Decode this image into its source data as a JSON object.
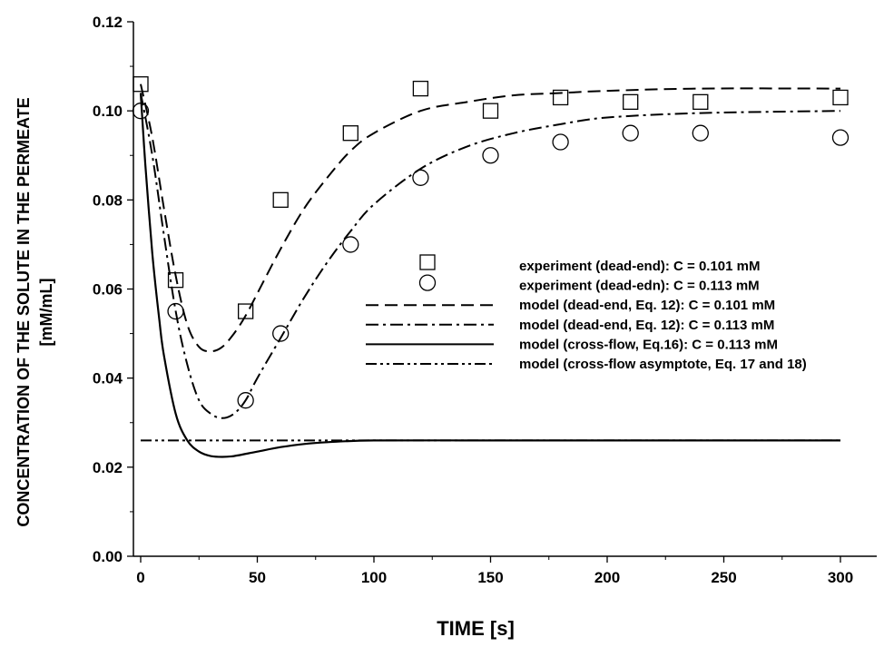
{
  "chart_data": {
    "type": "scatter",
    "xlabel": "TIME [s]",
    "ylabel_line1": "CONCENTRATION OF THE SOLUTE IN THE PERMEATE",
    "ylabel_line2": "[mM/mL]",
    "xlim": [
      0,
      320
    ],
    "ylim": [
      0,
      0.12
    ],
    "xticks": [
      0,
      50,
      100,
      150,
      200,
      250,
      300
    ],
    "yticks": [
      0.0,
      0.02,
      0.04,
      0.06,
      0.08,
      0.1,
      0.12
    ],
    "xtick_labels": [
      "0",
      "50",
      "100",
      "150",
      "200",
      "250",
      "300"
    ],
    "ytick_labels": [
      "0.00",
      "0.02",
      "0.04",
      "0.06",
      "0.08",
      "0.10",
      "0.12"
    ],
    "grid": false,
    "legend_position": "center-right",
    "series": [
      {
        "name": "experiment (dead-end): C = 0.101 mM",
        "kind": "markers",
        "marker": "square",
        "x": [
          0,
          15,
          45,
          60,
          90,
          120,
          150,
          180,
          210,
          240,
          300
        ],
        "y": [
          0.106,
          0.062,
          0.055,
          0.08,
          0.095,
          0.105,
          0.1,
          0.103,
          0.102,
          0.102,
          0.103
        ]
      },
      {
        "name": "experiment (dead-edn): C = 0.113 mM",
        "kind": "markers",
        "marker": "circle",
        "x": [
          0,
          15,
          45,
          60,
          90,
          120,
          150,
          180,
          210,
          240,
          300
        ],
        "y": [
          0.1,
          0.055,
          0.035,
          0.05,
          0.07,
          0.085,
          0.09,
          0.093,
          0.095,
          0.095,
          0.094
        ]
      },
      {
        "name": "model (dead-end, Eq. 12): C = 0.101 mM",
        "kind": "line",
        "dash": "dashed",
        "x": [
          0,
          5,
          10,
          15,
          20,
          25,
          30,
          35,
          40,
          45,
          50,
          60,
          70,
          80,
          90,
          100,
          120,
          140,
          160,
          180,
          200,
          240,
          300
        ],
        "y": [
          0.106,
          0.094,
          0.078,
          0.063,
          0.052,
          0.047,
          0.046,
          0.047,
          0.05,
          0.054,
          0.059,
          0.069,
          0.078,
          0.085,
          0.091,
          0.095,
          0.1,
          0.102,
          0.1035,
          0.104,
          0.1045,
          0.105,
          0.105
        ]
      },
      {
        "name": "model (dead-end, Eq. 12): C = 0.113 mM",
        "kind": "line",
        "dash": "dashdot",
        "x": [
          0,
          5,
          10,
          15,
          20,
          25,
          30,
          35,
          40,
          45,
          50,
          60,
          70,
          80,
          90,
          100,
          120,
          140,
          160,
          180,
          200,
          240,
          300
        ],
        "y": [
          0.104,
          0.09,
          0.072,
          0.055,
          0.043,
          0.035,
          0.032,
          0.031,
          0.032,
          0.035,
          0.04,
          0.049,
          0.058,
          0.066,
          0.073,
          0.079,
          0.087,
          0.092,
          0.095,
          0.097,
          0.0985,
          0.0995,
          0.1
        ]
      },
      {
        "name": "model (cross-flow, Eq.16): C =  0.113 mM",
        "kind": "line",
        "dash": "solid",
        "x": [
          0,
          2,
          5,
          8,
          10,
          15,
          20,
          25,
          30,
          35,
          40,
          50,
          60,
          70,
          80,
          100,
          150,
          200,
          250,
          300
        ],
        "y": [
          0.104,
          0.088,
          0.068,
          0.053,
          0.045,
          0.032,
          0.026,
          0.0235,
          0.0225,
          0.0223,
          0.0225,
          0.0235,
          0.0245,
          0.0252,
          0.0256,
          0.026,
          0.026,
          0.026,
          0.026,
          0.026
        ]
      },
      {
        "name": "model (cross-flow asymptote,  Eq. 17 and 18)",
        "kind": "line",
        "dash": "dashdotdot",
        "x": [
          0,
          300
        ],
        "y": [
          0.026,
          0.026
        ]
      }
    ]
  }
}
